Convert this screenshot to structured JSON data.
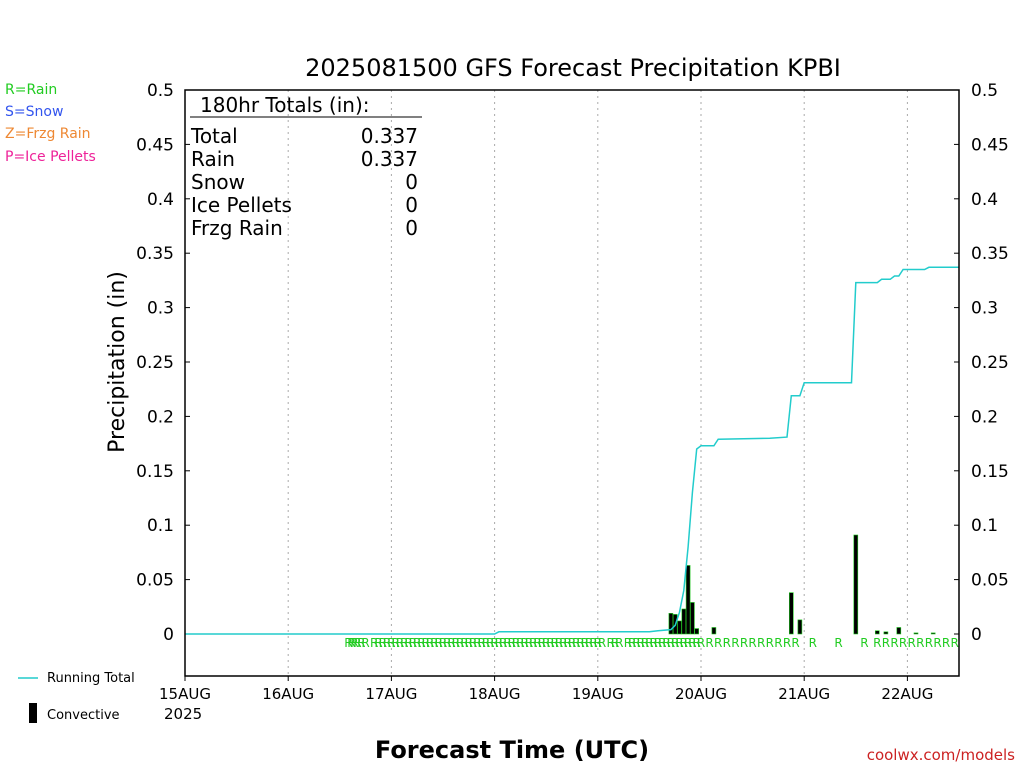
{
  "chart_data": {
    "type": "bar",
    "title": "2025081500 GFS Forecast Precipitation KPBI",
    "xlabel": "Forecast Time (UTC)",
    "ylabel": "Precipitation (in)",
    "ylim": [
      0,
      0.5
    ],
    "yticks": [
      "0",
      "0.05",
      "0.1",
      "0.15",
      "0.2",
      "0.25",
      "0.3",
      "0.35",
      "0.4",
      "0.45",
      "0.5"
    ],
    "xlim_hours": [
      0,
      180
    ],
    "xticks": [
      {
        "label": "15AUG",
        "hour": 0
      },
      {
        "label": "16AUG",
        "hour": 24
      },
      {
        "label": "17AUG",
        "hour": 48
      },
      {
        "label": "18AUG",
        "hour": 72
      },
      {
        "label": "19AUG",
        "hour": 96
      },
      {
        "label": "20AUG",
        "hour": 120
      },
      {
        "label": "21AUG",
        "hour": 144
      },
      {
        "label": "22AUG",
        "hour": 168
      }
    ],
    "year_label": "2025",
    "grid": "vertical dotted",
    "precip_type_legend": [
      {
        "label": "R=Rain",
        "color": "#22cc22"
      },
      {
        "label": "S=Snow",
        "color": "#3355ee"
      },
      {
        "label": "Z=Frzg Rain",
        "color": "#ee8833"
      },
      {
        "label": "P=Ice Pellets",
        "color": "#ee2299"
      }
    ],
    "series": [
      {
        "name": "Running Total",
        "color": "#22cccc",
        "points": [
          [
            0,
            0
          ],
          [
            72,
            0
          ],
          [
            73,
            0.002
          ],
          [
            108,
            0.002
          ],
          [
            110,
            0.003
          ],
          [
            113,
            0.004
          ],
          [
            114,
            0.008
          ],
          [
            115,
            0.02
          ],
          [
            116,
            0.04
          ],
          [
            117,
            0.08
          ],
          [
            118,
            0.13
          ],
          [
            119,
            0.17
          ],
          [
            120,
            0.173
          ],
          [
            123,
            0.173
          ],
          [
            124,
            0.179
          ],
          [
            136,
            0.18
          ],
          [
            140,
            0.181
          ],
          [
            141,
            0.219
          ],
          [
            143,
            0.219
          ],
          [
            144,
            0.231
          ],
          [
            155,
            0.231
          ],
          [
            156,
            0.323
          ],
          [
            161,
            0.323
          ],
          [
            162,
            0.326
          ],
          [
            164,
            0.326
          ],
          [
            165,
            0.329
          ],
          [
            166,
            0.329
          ],
          [
            167,
            0.335
          ],
          [
            172,
            0.335
          ],
          [
            173,
            0.337
          ],
          [
            180,
            0.337
          ]
        ]
      },
      {
        "name": "Convective",
        "color": "#000000",
        "bars": [
          [
            113,
            0.019
          ],
          [
            114,
            0.018
          ],
          [
            115,
            0.012
          ],
          [
            116,
            0.023
          ],
          [
            117,
            0.063
          ],
          [
            118,
            0.029
          ],
          [
            119,
            0.005
          ],
          [
            123,
            0.006
          ],
          [
            141,
            0.038
          ],
          [
            143,
            0.013
          ],
          [
            156,
            0.091
          ],
          [
            161,
            0.003
          ],
          [
            163,
            0.002
          ],
          [
            166,
            0.006
          ],
          [
            170,
            0.001
          ],
          [
            174,
            0.001
          ]
        ]
      }
    ],
    "rain_marker": "R",
    "rain_marker_hours": [
      38,
      38.7,
      39.4,
      40.1,
      41,
      42,
      44,
      45,
      46,
      47,
      48,
      49,
      50,
      51,
      52,
      53,
      54,
      55,
      56,
      57,
      58,
      59,
      60,
      61,
      62,
      63,
      64,
      65,
      66,
      67,
      68,
      69,
      70,
      71,
      72,
      73,
      74,
      75,
      76,
      77,
      78,
      79,
      80,
      81,
      82,
      83,
      84,
      85,
      86,
      87,
      88,
      89,
      90,
      91,
      92,
      93,
      94,
      95,
      96,
      97,
      99,
      100,
      101,
      103,
      104,
      105,
      106,
      107,
      108,
      109,
      110,
      111,
      112,
      113,
      114,
      115,
      116,
      117,
      118,
      119,
      120,
      122,
      124,
      126,
      128,
      130,
      132,
      134,
      136,
      138,
      140,
      142,
      146,
      152,
      158,
      161,
      163,
      165,
      167,
      169,
      171,
      173,
      175,
      177,
      179
    ],
    "totals_box": {
      "heading": "180hr Totals (in):",
      "rows": [
        {
          "label": "Total",
          "value": "0.337"
        },
        {
          "label": "Rain",
          "value": "0.337"
        },
        {
          "label": "Snow",
          "value": "0"
        },
        {
          "label": "Ice Pellets",
          "value": "0"
        },
        {
          "label": "Frzg Rain",
          "value": "0"
        }
      ]
    },
    "bottom_legend": [
      {
        "label": "Running Total",
        "color": "#22cccc"
      },
      {
        "label": "Convective",
        "color": "#000000"
      }
    ],
    "credit": "coolwx.com/models"
  }
}
